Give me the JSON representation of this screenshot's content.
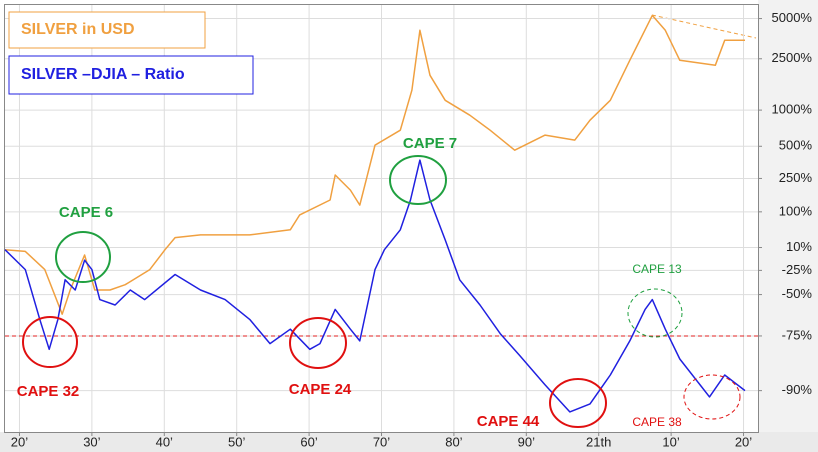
{
  "chart_data": {
    "type": "line",
    "log_scale": true,
    "grid": true,
    "legend": "top-left",
    "xlim": [
      1918,
      2022
    ],
    "xticks": [
      {
        "value": 1920,
        "label": "20’"
      },
      {
        "value": 1930,
        "label": "30’"
      },
      {
        "value": 1940,
        "label": "40’"
      },
      {
        "value": 1950,
        "label": "50’"
      },
      {
        "value": 1960,
        "label": "60’"
      },
      {
        "value": 1970,
        "label": "70’"
      },
      {
        "value": 1980,
        "label": "80’"
      },
      {
        "value": 1990,
        "label": "90’"
      },
      {
        "value": 2000,
        "label": "21th"
      },
      {
        "value": 2010,
        "label": "10’"
      },
      {
        "value": 2020,
        "label": "20’"
      }
    ],
    "ylim": [
      -95,
      6300
    ],
    "yticks": [
      {
        "value": 5000,
        "label": "5000%"
      },
      {
        "value": 2500,
        "label": "2500%"
      },
      {
        "value": 1000,
        "label": "1000%"
      },
      {
        "value": 500,
        "label": "500%"
      },
      {
        "value": 250,
        "label": "250%"
      },
      {
        "value": 100,
        "label": "100%"
      },
      {
        "value": 10,
        "label": "10%"
      },
      {
        "value": -25,
        "label": "-25%"
      },
      {
        "value": -50,
        "label": "-50%"
      },
      {
        "value": -75,
        "label": "-75%"
      },
      {
        "value": -90,
        "label": "-90%"
      }
    ],
    "hlines": [
      {
        "value": -75,
        "color": "#e02020"
      }
    ],
    "series": [
      {
        "name": "SILVER in USD",
        "color": "#f0a040",
        "x": [
          1918,
          1920.8,
          1923.5,
          1925.9,
          1927,
          1929,
          1930.4,
          1932.5,
          1934.6,
          1938,
          1940.1,
          1941.5,
          1945,
          1951.8,
          1957.4,
          1958.7,
          1962.9,
          1963.6,
          1965.7,
          1967,
          1969.1,
          1972.6,
          1974.2,
          1975.3,
          1976.7,
          1978.8,
          1982.2,
          1985,
          1988.4,
          1992.6,
          1996.7,
          1998.8,
          2001.6,
          2004.3,
          2007.4,
          2009.2,
          2011.2,
          2016.1,
          2017.4,
          2020.2
        ],
        "values": [
          6,
          3,
          -24,
          -64,
          -46,
          -3,
          -46,
          -46,
          -41,
          -24,
          6,
          30,
          36,
          36,
          48,
          90,
          144,
          271,
          188,
          124,
          511,
          685,
          1435,
          4090,
          1870,
          1197,
          910,
          685,
          462,
          623,
          565,
          829,
          1197,
          2435,
          5280,
          4090,
          2435,
          2230,
          3440,
          3440
        ]
      },
      {
        "name": "SILVER –DJIA – Ratio",
        "color": "#2020e0",
        "x": [
          1918,
          1920.8,
          1922.8,
          1924.1,
          1925.3,
          1926.3,
          1927.7,
          1929,
          1930,
          1931.1,
          1933.2,
          1935.3,
          1937.3,
          1941.5,
          1945,
          1948.4,
          1951.8,
          1954.6,
          1957.4,
          1960.1,
          1961.5,
          1963.6,
          1965.7,
          1967,
          1969.1,
          1970.4,
          1972.6,
          1974,
          1975.3,
          1976.7,
          1978.8,
          1980.8,
          1983.6,
          1986.4,
          1989.1,
          1992.6,
          1996,
          1998.8,
          2001.6,
          2004.3,
          2006.4,
          2007.4,
          2009.2,
          2011.2,
          2014,
          2015.3,
          2017.4,
          2020.2
        ],
        "values": [
          6,
          -24,
          -67,
          -80,
          -67,
          -36,
          -46,
          -11,
          -24,
          -54,
          -58,
          -46,
          -54,
          -30,
          -46,
          -54,
          -67,
          -78,
          -72,
          -80,
          -78,
          -61,
          -72,
          -77,
          -24,
          6,
          48,
          144,
          376,
          144,
          25,
          -36,
          -58,
          -74,
          -82,
          -89,
          -93,
          -92,
          -87,
          -77,
          -61,
          -54,
          -72,
          -83,
          -89,
          -91,
          -87,
          -90
        ]
      }
    ],
    "annotations": [
      {
        "text": "CAPE 6",
        "color": "#20a040"
      },
      {
        "text": "CAPE 32",
        "color": "#e01010"
      },
      {
        "text": "CAPE 24",
        "color": "#e01010"
      },
      {
        "text": "CAPE 7",
        "color": "#20a040"
      },
      {
        "text": "CAPE 44",
        "color": "#e01010"
      },
      {
        "text": "CAPE 13",
        "color": "#20a040"
      },
      {
        "text": "CAPE 38",
        "color": "#e01010"
      }
    ]
  }
}
